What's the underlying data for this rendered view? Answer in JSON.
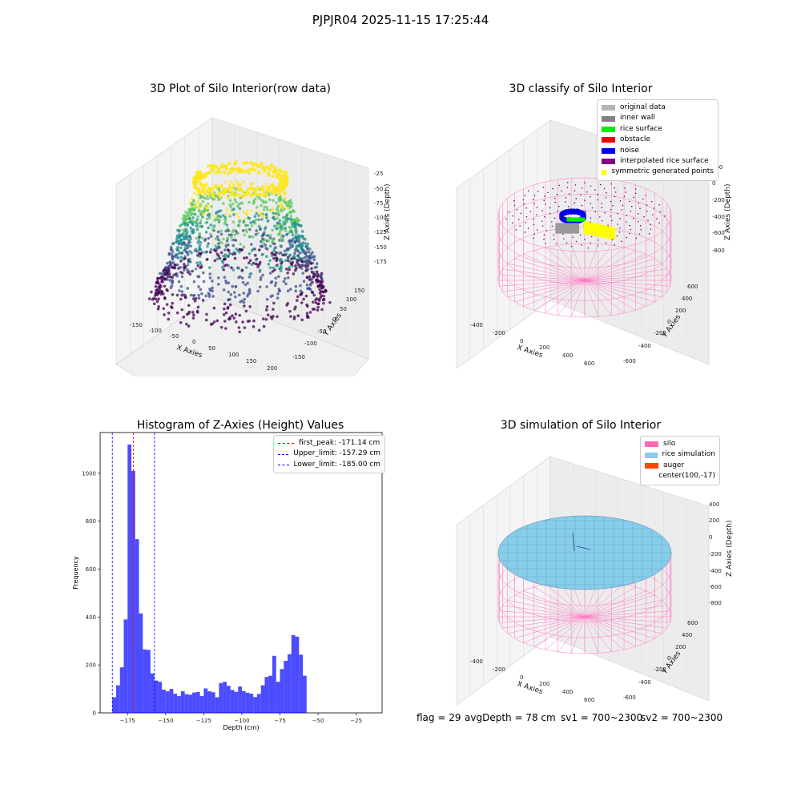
{
  "suptitle": "PJPJR04 2025-11-15 17:25:44",
  "panel1": {
    "title": "3D Plot of Silo Interior(row data)",
    "xlabel": "X Axies",
    "ylabel": "Y Axies",
    "zlabel": "Z Axies (Depth)",
    "xticks": [
      "-150",
      "-100",
      "-50",
      "0",
      "50",
      "100",
      "150",
      "200"
    ],
    "yticks": [
      "-150",
      "-100",
      "-50",
      "0",
      "50",
      "100",
      "150"
    ],
    "zticks": [
      "-25",
      "-50",
      "-75",
      "-100",
      "-125",
      "-150",
      "-175"
    ]
  },
  "panel2": {
    "title": "3D classify of Silo Interior",
    "xlabel": "X Axies",
    "ylabel": "Y Axies",
    "zlabel": "Z Axies (Depth)",
    "xticks": [
      "-400",
      "-200",
      "0",
      "200",
      "400",
      "600"
    ],
    "yticks": [
      "-600",
      "-400",
      "-200",
      "0",
      "200",
      "400",
      "600"
    ],
    "zticks": [
      "200",
      "0",
      "-200",
      "-400",
      "-600",
      "-800"
    ],
    "legend": [
      {
        "label": "original data",
        "color": "#b4b4b4"
      },
      {
        "label": "inner wall",
        "color": "#808080"
      },
      {
        "label": "rice surface",
        "color": "#00ee00"
      },
      {
        "label": "obstacle",
        "color": "#ee0000"
      },
      {
        "label": "noise",
        "color": "#0000ee"
      },
      {
        "label": "interpolated rice surface",
        "color": "#800080"
      },
      {
        "label": "symmetric generated points",
        "color": "#ffff00"
      }
    ]
  },
  "panel4": {
    "title": "3D simulation of Silo Interior",
    "xlabel": "X Axies",
    "ylabel": "Y Axies",
    "zlabel": "Z Axies (Depth)",
    "xticks": [
      "-400",
      "-200",
      "0",
      "200",
      "400",
      "600"
    ],
    "yticks": [
      "-600",
      "-400",
      "-200",
      "0",
      "200",
      "400",
      "600"
    ],
    "zticks": [
      "400",
      "200",
      "0",
      "-200",
      "-400",
      "-600",
      "-800"
    ],
    "legend": [
      {
        "label": "silo",
        "color": "#ff69b4"
      },
      {
        "label": "rice simulation",
        "color": "#87ceeb"
      },
      {
        "label": "auger",
        "color": "#ff4500"
      },
      {
        "label": "center(100,-17)",
        "color": ""
      }
    ]
  },
  "footer": {
    "flag": "flag = 29",
    "avg": "avgDepth = 78 cm",
    "sv1": "sv1 = 700~2300",
    "sv2": "sv2 = 700~2300"
  },
  "chart_data": [
    {
      "type": "scatter",
      "title": "3D Plot of Silo Interior(row data)",
      "xlabel": "X Axies",
      "ylabel": "Y Axies",
      "zlabel": "Z Axies (Depth)",
      "xlim": [
        -175,
        200
      ],
      "ylim": [
        -175,
        175
      ],
      "zlim": [
        -200,
        -10
      ],
      "colormap": "viridis"
    },
    {
      "type": "scatter",
      "title": "3D classify of Silo Interior",
      "xlabel": "X Axies",
      "ylabel": "Y Axies",
      "zlabel": "Z Axies (Depth)",
      "xlim": [
        -500,
        700
      ],
      "ylim": [
        -700,
        700
      ],
      "zlim": [
        -900,
        300
      ],
      "series": [
        {
          "name": "original data"
        },
        {
          "name": "inner wall"
        },
        {
          "name": "rice surface"
        },
        {
          "name": "obstacle"
        },
        {
          "name": "noise"
        },
        {
          "name": "interpolated rice surface"
        },
        {
          "name": "symmetric generated points"
        }
      ]
    },
    {
      "type": "bar",
      "title": "Histogram of Z-Axies (Height) Values",
      "xlabel": "Depth (cm)",
      "ylabel": "Frequency",
      "xlim": [
        -193,
        -8
      ],
      "ylim": [
        0,
        1170
      ],
      "xticks": [
        -175,
        -150,
        -125,
        -100,
        -75,
        -50,
        -25
      ],
      "yticks": [
        0,
        200,
        400,
        600,
        800,
        1000
      ],
      "bin_start": -185,
      "bin_width": 2.5,
      "values": [
        65,
        115,
        190,
        390,
        1120,
        1010,
        725,
        415,
        265,
        263,
        165,
        135,
        130,
        97,
        90,
        100,
        80,
        70,
        90,
        78,
        76,
        85,
        87,
        70,
        102,
        90,
        86,
        65,
        124,
        130,
        113,
        96,
        88,
        110,
        91,
        84,
        80,
        66,
        79,
        115,
        150,
        155,
        238,
        130,
        183,
        217,
        245,
        325,
        318,
        243,
        155
      ],
      "bar_color": "#0000ff",
      "lines": [
        {
          "name": "first_peak: -171.14 cm",
          "x": -171.14,
          "color": "#ff0000"
        },
        {
          "name": "Upper_limit: -157.29 cm",
          "x": -157.29,
          "color": "#0000ff"
        },
        {
          "name": "Lower_limit: -185.00 cm",
          "x": -185.0,
          "color": "#0000ff"
        }
      ]
    },
    {
      "type": "area",
      "title": "3D simulation of Silo Interior",
      "xlabel": "X Axies",
      "ylabel": "Y Axies",
      "zlabel": "Z Axies (Depth)",
      "xlim": [
        -500,
        700
      ],
      "ylim": [
        -700,
        700
      ],
      "zlim": [
        -900,
        500
      ],
      "series": [
        {
          "name": "silo"
        },
        {
          "name": "rice simulation"
        },
        {
          "name": "auger"
        },
        {
          "name": "center(100,-17)"
        }
      ]
    }
  ]
}
